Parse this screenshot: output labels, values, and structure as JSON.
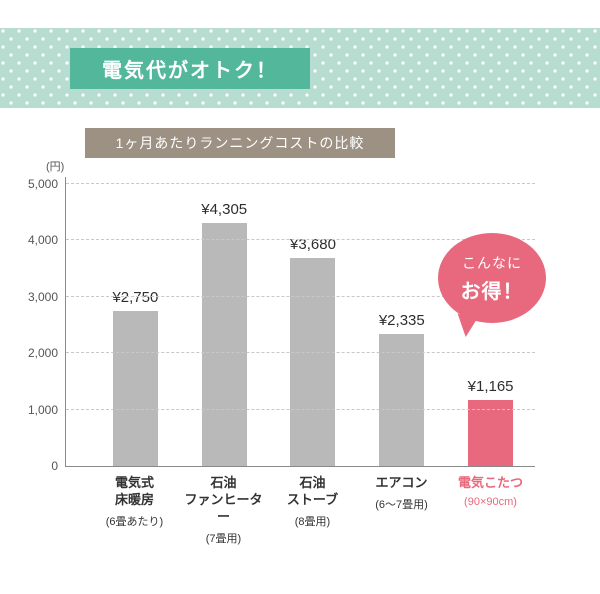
{
  "banner": {
    "title": "電気代がオトク！"
  },
  "chart": {
    "title": "1ヶ月あたりランニングコストの比較",
    "unit_label": "(円)"
  },
  "bubble": {
    "line1": "こんなに",
    "line2": "お得！"
  },
  "colors": {
    "banner_bg": "#b7ddd1",
    "banner_box": "#53b89b",
    "title_box": "#9d9184",
    "bar_default": "#b9b9b9",
    "bar_highlight": "#e8697d",
    "bubble": "#e8697d",
    "text": "#333333"
  },
  "chart_data": {
    "type": "bar",
    "title": "1ヶ月あたりランニングコストの比較",
    "ylabel": "(円)",
    "ylim": [
      0,
      5000
    ],
    "grid": "dashed-horizontal",
    "legend": "none",
    "yticks": [
      {
        "value": 0,
        "label": "0"
      },
      {
        "value": 1000,
        "label": "1,000"
      },
      {
        "value": 2000,
        "label": "2,000"
      },
      {
        "value": 3000,
        "label": "3,000"
      },
      {
        "value": 4000,
        "label": "4,000"
      },
      {
        "value": 5000,
        "label": "5,000"
      }
    ],
    "categories": [
      {
        "lines": [
          "電気式",
          "床暖房"
        ],
        "note": "(6畳あたり)",
        "value": 2750,
        "value_label": "¥2,750",
        "highlight": false
      },
      {
        "lines": [
          "石油",
          "ファンヒーター"
        ],
        "note": "(7畳用)",
        "value": 4305,
        "value_label": "¥4,305",
        "highlight": false
      },
      {
        "lines": [
          "石油",
          "ストーブ"
        ],
        "note": "(8畳用)",
        "value": 3680,
        "value_label": "¥3,680",
        "highlight": false
      },
      {
        "lines": [
          "エアコン"
        ],
        "note": "(6～7畳用)",
        "value": 2335,
        "value_label": "¥2,335",
        "highlight": false
      },
      {
        "lines": [
          "電気こたつ"
        ],
        "note": "(90×90cm)",
        "value": 1165,
        "value_label": "¥1,165",
        "highlight": true
      }
    ]
  }
}
